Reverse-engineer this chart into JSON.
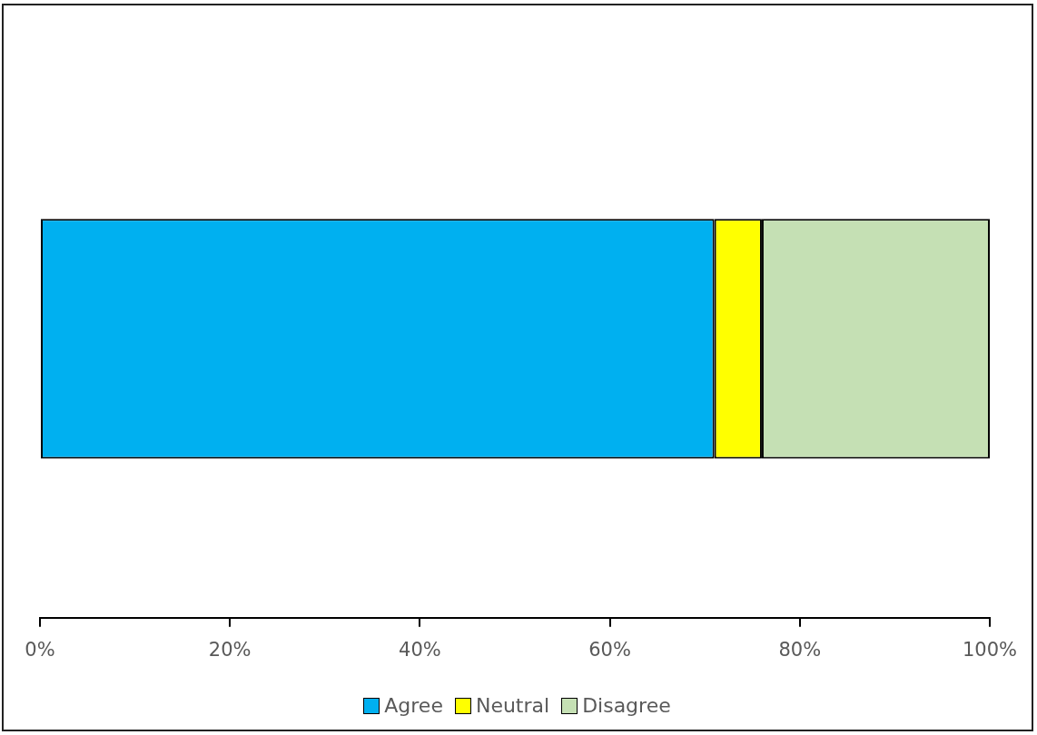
{
  "chart_data": {
    "type": "bar",
    "orientation": "horizontal",
    "stacked": true,
    "categories": [
      null
    ],
    "series": [
      {
        "name": "Agree",
        "color": "#00b0f0",
        "values": [
          71
        ]
      },
      {
        "name": "Neutral",
        "color": "#ffff00",
        "values": [
          5
        ]
      },
      {
        "name": "Disagree",
        "color": "#c5e0b4",
        "values": [
          24
        ]
      }
    ],
    "xlim": [
      0,
      100
    ],
    "xticks": [
      {
        "value": 0,
        "label": "0%"
      },
      {
        "value": 20,
        "label": "20%"
      },
      {
        "value": 40,
        "label": "40%"
      },
      {
        "value": 60,
        "label": "60%"
      },
      {
        "value": 80,
        "label": "80%"
      },
      {
        "value": 100,
        "label": "100%"
      }
    ],
    "legend": "bottom"
  }
}
